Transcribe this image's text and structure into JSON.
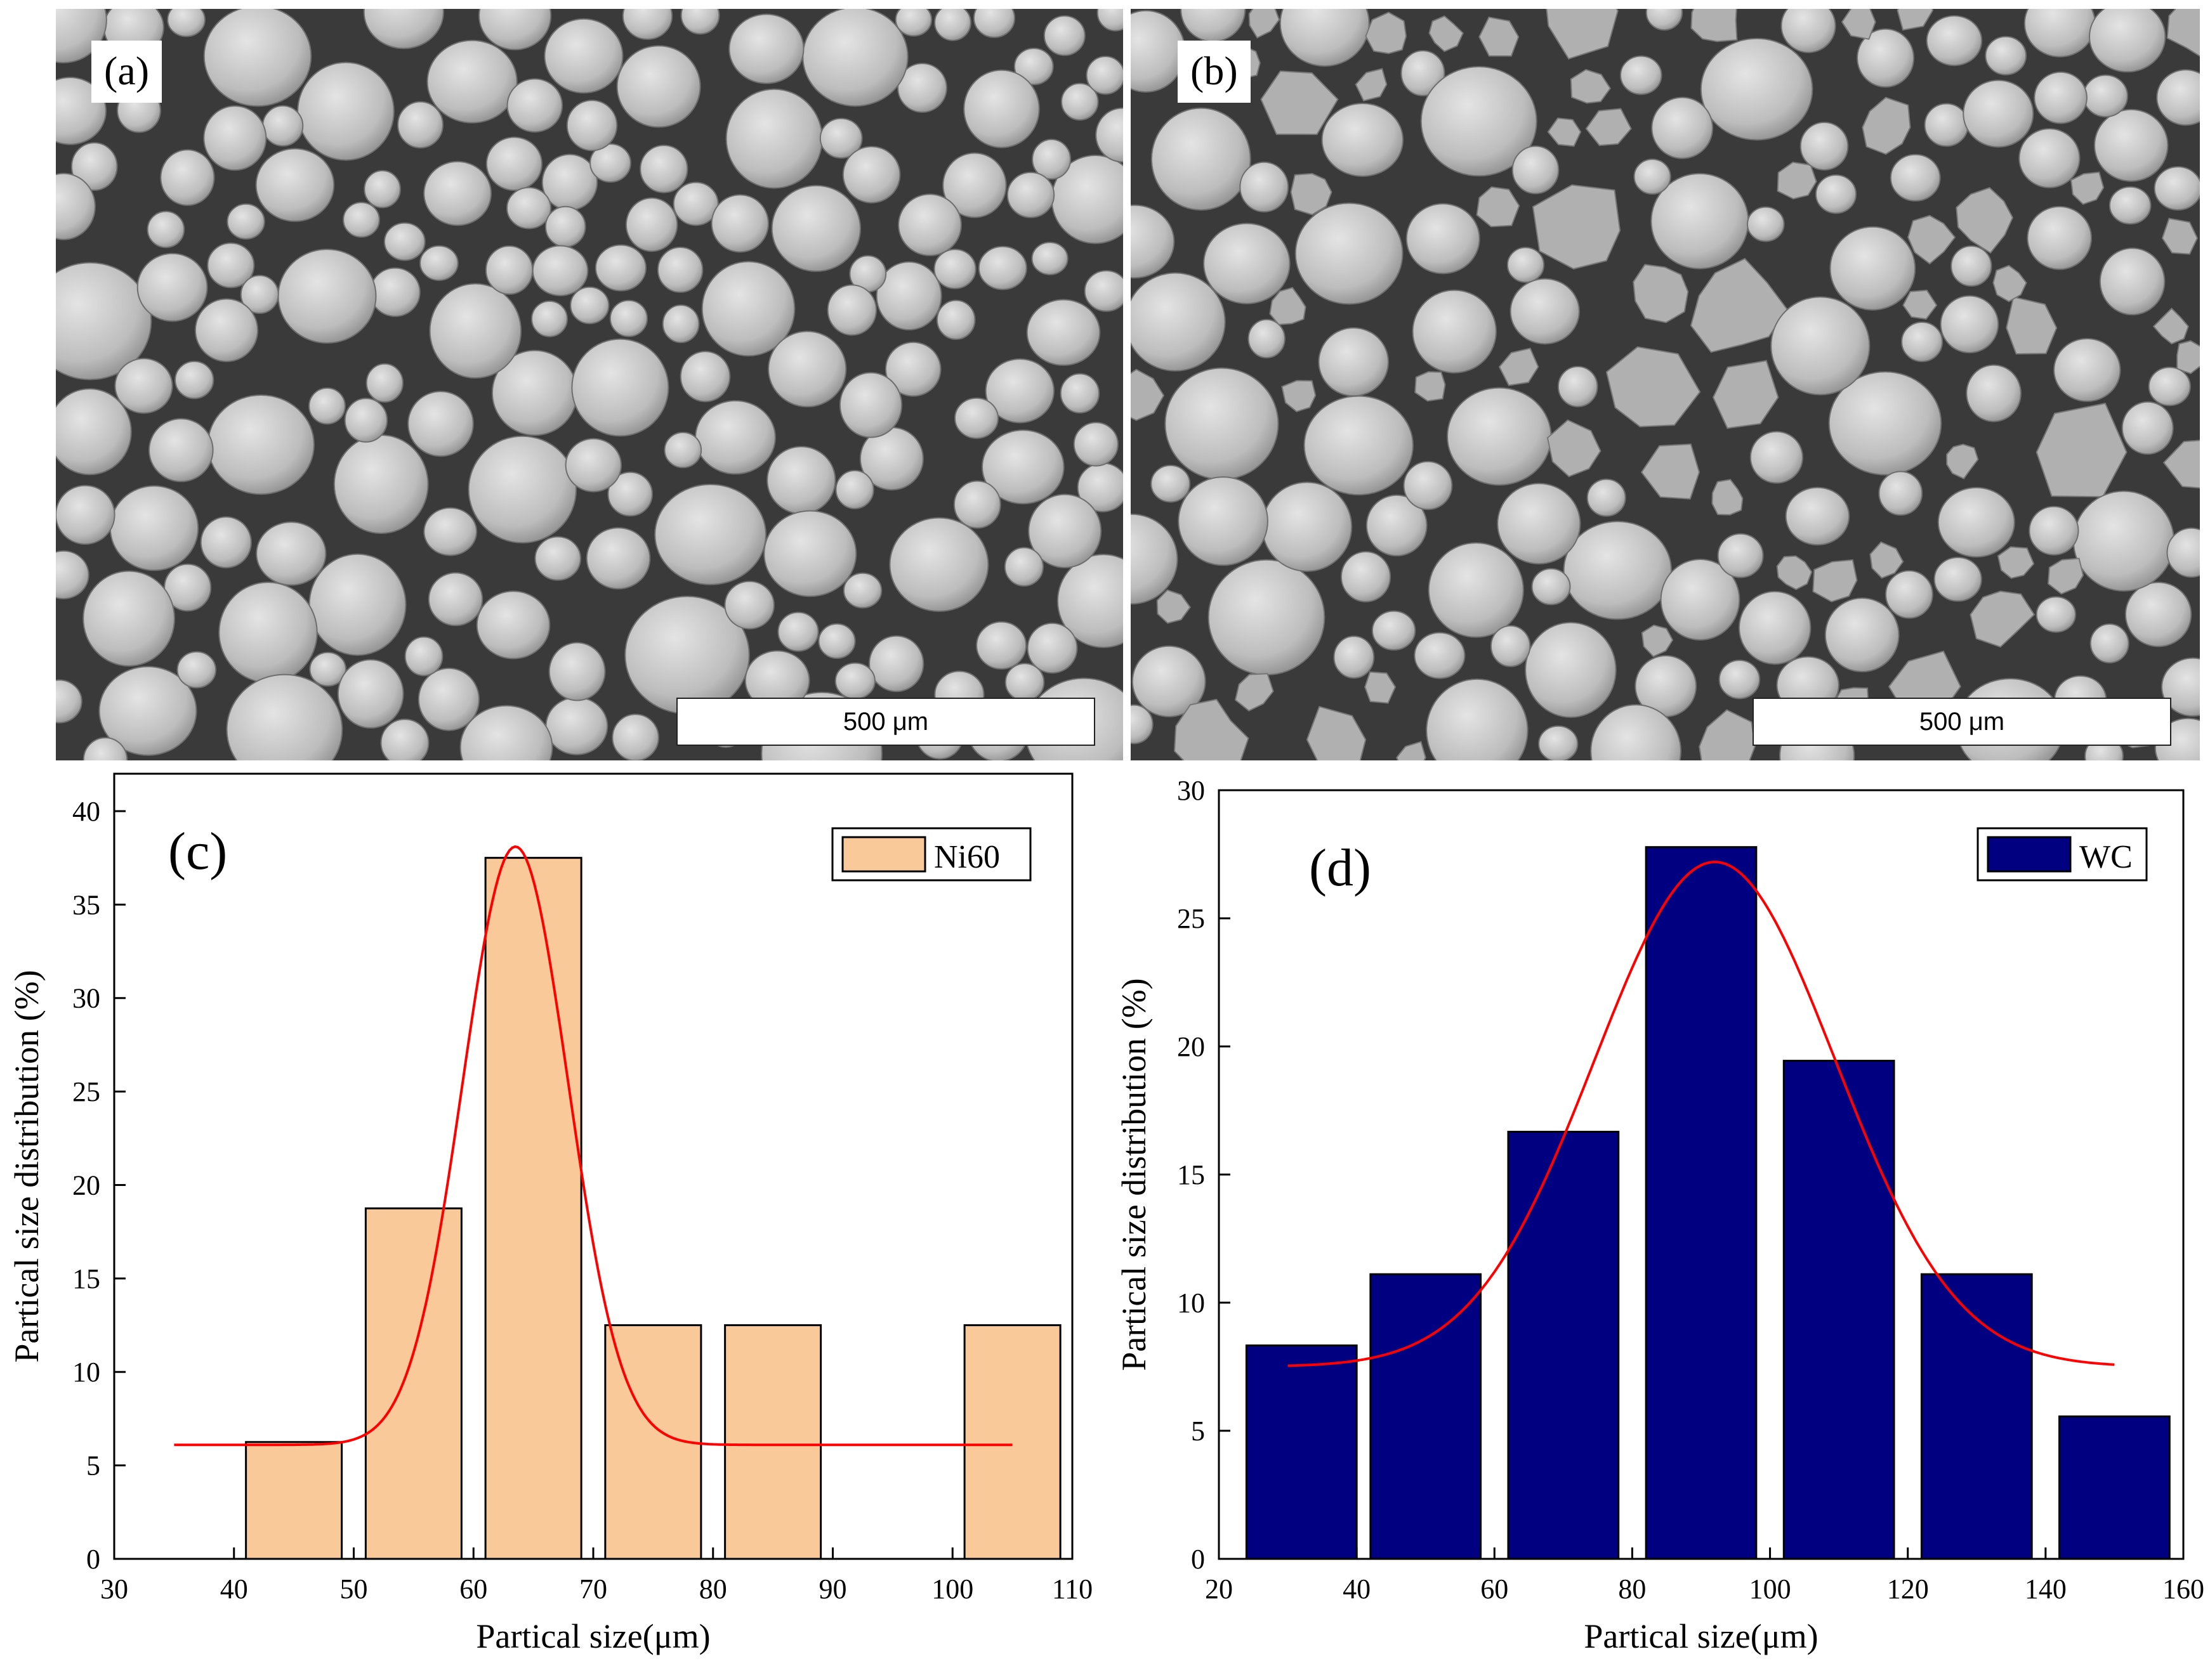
{
  "panels": {
    "a": {
      "label": "(a)",
      "scale_bar": "500 μm"
    },
    "b": {
      "label": "(b)",
      "scale_bar": "500 μm"
    }
  },
  "colors": {
    "ni60_bar": "#f9c99a",
    "wc_bar": "#000080",
    "fit_line": "#ff0000",
    "sem_background": "#3a3a3a",
    "particle": "#bdbdbd"
  },
  "chart_data": [
    {
      "panel_label": "(c)",
      "type": "bar",
      "title": "",
      "xlabel": "Partical size(μm)",
      "ylabel": "Partical size distribution (%)",
      "xlim": [
        30,
        110
      ],
      "ylim": [
        0,
        42
      ],
      "xticks": [
        30,
        40,
        50,
        60,
        70,
        80,
        90,
        100,
        110
      ],
      "yticks": [
        0,
        5,
        10,
        15,
        20,
        25,
        30,
        35,
        40
      ],
      "legend": {
        "position": "top-right",
        "entries": [
          "Ni60"
        ]
      },
      "bars": [
        {
          "x_start": 41,
          "x_end": 49,
          "value": 6.25
        },
        {
          "x_start": 51,
          "x_end": 59,
          "value": 18.75
        },
        {
          "x_start": 61,
          "x_end": 69,
          "value": 37.5
        },
        {
          "x_start": 71,
          "x_end": 79,
          "value": 12.5
        },
        {
          "x_start": 81,
          "x_end": 89,
          "value": 12.5
        },
        {
          "x_start": 101,
          "x_end": 109,
          "value": 12.5
        }
      ],
      "fit": {
        "type": "gaussian",
        "baseline": 6.1,
        "amplitude": 32.0,
        "center": 63.5,
        "sigma": 4.4,
        "x_range": [
          35,
          105
        ]
      }
    },
    {
      "panel_label": "(d)",
      "type": "bar",
      "title": "",
      "xlabel": "Partical size(μm)",
      "ylabel": "Partical size distribution (%)",
      "xlim": [
        20,
        160
      ],
      "ylim": [
        0,
        30
      ],
      "xticks": [
        20,
        40,
        60,
        80,
        100,
        120,
        140,
        160
      ],
      "yticks": [
        0,
        5,
        10,
        15,
        20,
        25,
        30
      ],
      "legend": {
        "position": "top-right",
        "entries": [
          "WC"
        ]
      },
      "bars": [
        {
          "x_start": 24,
          "x_end": 40,
          "value": 8.33
        },
        {
          "x_start": 42,
          "x_end": 58,
          "value": 11.11
        },
        {
          "x_start": 62,
          "x_end": 78,
          "value": 16.67
        },
        {
          "x_start": 82,
          "x_end": 98,
          "value": 27.78
        },
        {
          "x_start": 102,
          "x_end": 118,
          "value": 19.44
        },
        {
          "x_start": 122,
          "x_end": 138,
          "value": 11.11
        },
        {
          "x_start": 142,
          "x_end": 158,
          "value": 5.56
        }
      ],
      "fit": {
        "type": "gaussian",
        "baseline": 7.5,
        "amplitude": 19.7,
        "center": 92,
        "sigma": 17.5,
        "x_range": [
          30,
          150
        ]
      }
    }
  ]
}
